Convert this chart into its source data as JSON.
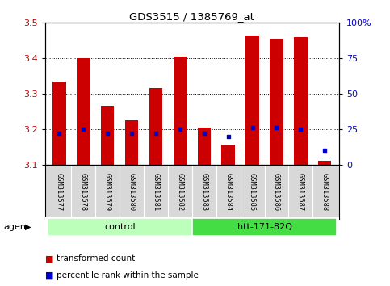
{
  "title": "GDS3515 / 1385769_at",
  "samples": [
    "GSM313577",
    "GSM313578",
    "GSM313579",
    "GSM313580",
    "GSM313581",
    "GSM313582",
    "GSM313583",
    "GSM313584",
    "GSM313585",
    "GSM313586",
    "GSM313587",
    "GSM313588"
  ],
  "transformed_count": [
    3.335,
    3.4,
    3.265,
    3.225,
    3.315,
    3.405,
    3.205,
    3.155,
    3.465,
    3.455,
    3.46,
    3.11
  ],
  "percentile_rank": [
    22,
    25,
    22,
    22,
    22,
    25,
    22,
    20,
    26,
    26,
    25,
    10
  ],
  "ylim_left": [
    3.1,
    3.5
  ],
  "ylim_right": [
    0,
    100
  ],
  "yticks_left": [
    3.1,
    3.2,
    3.3,
    3.4,
    3.5
  ],
  "yticks_right": [
    0,
    25,
    50,
    75,
    100
  ],
  "ytick_labels_right": [
    "0",
    "25",
    "50",
    "75",
    "100%"
  ],
  "bar_bottom": 3.1,
  "groups": [
    {
      "label": "control",
      "start": 0,
      "end": 6,
      "color": "#bbffbb"
    },
    {
      "label": "htt-171-82Q",
      "start": 6,
      "end": 12,
      "color": "#44dd44"
    }
  ],
  "agent_label": "agent",
  "bar_color": "#cc0000",
  "percentile_color": "#0000cc",
  "grid_color": "#000000",
  "bg_color": "#ffffff",
  "left_tick_color": "#cc0000",
  "right_tick_color": "#0000cc",
  "sample_bg_color": "#d8d8d8",
  "legend_items": [
    {
      "label": "transformed count",
      "color": "#cc0000"
    },
    {
      "label": "percentile rank within the sample",
      "color": "#0000cc"
    }
  ]
}
